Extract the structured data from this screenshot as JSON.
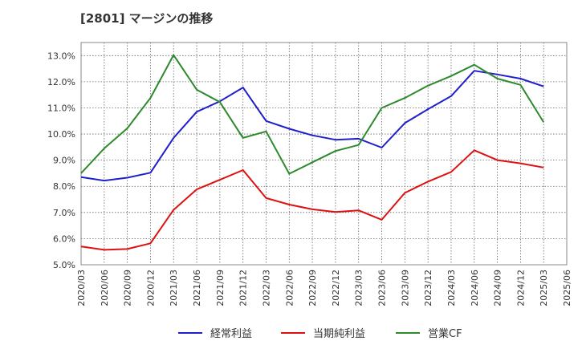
{
  "title": "[2801]  マージンの推移",
  "chart_data": {
    "type": "line",
    "title": "[2801]  マージンの推移",
    "xlabel": "",
    "ylabel": "",
    "x": [
      "2020/03",
      "2020/06",
      "2020/09",
      "2020/12",
      "2021/03",
      "2021/06",
      "2021/09",
      "2021/12",
      "2022/03",
      "2022/06",
      "2022/09",
      "2022/12",
      "2023/03",
      "2023/06",
      "2023/09",
      "2023/12",
      "2024/03",
      "2024/06",
      "2024/09",
      "2024/12",
      "2025/03",
      "2025/06"
    ],
    "ylim": [
      5.0,
      13.5
    ],
    "yticks": [
      "5.0%",
      "6.0%",
      "7.0%",
      "8.0%",
      "9.0%",
      "10.0%",
      "11.0%",
      "12.0%",
      "13.0%"
    ],
    "grid": true,
    "legend_position": "bottom",
    "series": [
      {
        "name": "経常利益",
        "color": "#1f1fcc",
        "values": [
          8.35,
          8.22,
          8.33,
          8.52,
          9.85,
          10.85,
          11.25,
          11.78,
          10.5,
          10.2,
          9.95,
          9.78,
          9.82,
          9.48,
          10.42,
          10.95,
          11.45,
          12.42,
          12.28,
          12.12,
          11.82,
          null
        ]
      },
      {
        "name": "当期純利益",
        "color": "#dd1111",
        "values": [
          5.7,
          5.57,
          5.6,
          5.82,
          7.1,
          7.88,
          8.25,
          8.62,
          7.55,
          7.3,
          7.12,
          7.02,
          7.08,
          6.72,
          7.75,
          8.18,
          8.55,
          9.38,
          9.0,
          8.88,
          8.72,
          null
        ]
      },
      {
        "name": "営業CF",
        "color": "#2d8a2d",
        "values": [
          8.5,
          9.45,
          10.22,
          11.38,
          13.02,
          11.7,
          11.22,
          9.85,
          10.1,
          8.48,
          8.92,
          9.35,
          9.58,
          11.0,
          11.38,
          11.85,
          12.22,
          12.65,
          12.12,
          11.88,
          10.45,
          null
        ]
      }
    ]
  }
}
